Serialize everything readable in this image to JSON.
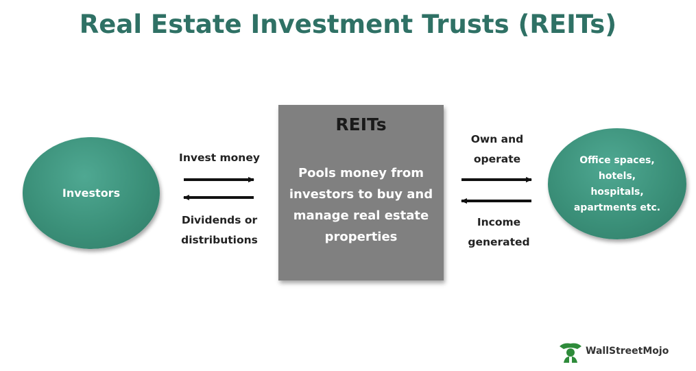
{
  "title": "Real Estate Investment Trusts (REITs)",
  "nodes": {
    "investors": {
      "label": "Investors"
    },
    "reits": {
      "title": "REITs",
      "body": "Pools money from\ninvestors to buy and\nmanage real estate\nproperties"
    },
    "assets": {
      "label": "Office spaces,\nhotels,\nhospitals,\napartments etc."
    }
  },
  "edges": {
    "invest_money": "Invest money",
    "dividends": "Dividends or\ndistributions",
    "own_operate": "Own and\noperate",
    "income": "Income\ngenerated"
  },
  "logo": {
    "text": "WallStreetMojo"
  },
  "colors": {
    "title": "#2f7165",
    "ellipse": "#3b9079",
    "box": "#808080",
    "logo_green": "#2e8b3a"
  }
}
